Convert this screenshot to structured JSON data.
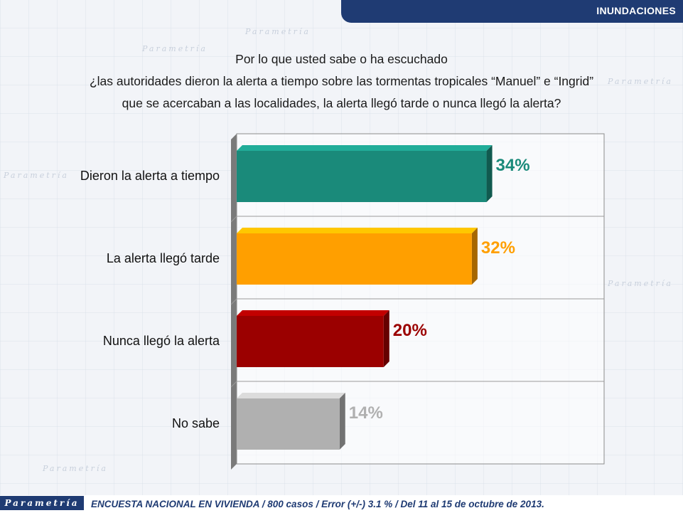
{
  "header": {
    "title": "INUNDACIONES"
  },
  "question": {
    "line1": "Por lo que usted sabe o ha escuchado",
    "line2": "¿las autoridades dieron la alerta a tiempo sobre las tormentas tropicales “Manuel” e “Ingrid”",
    "line3": "que se acercaban a las localidades, la alerta llegó tarde o nunca llegó la alerta?"
  },
  "chart_data": {
    "type": "bar",
    "orientation": "horizontal",
    "categories": [
      "Dieron la alerta a tiempo",
      "La alerta llegó tarde",
      "Nunca llegó la alerta",
      "No sabe"
    ],
    "values": [
      34,
      32,
      20,
      14
    ],
    "value_labels": [
      "34%",
      "32%",
      "20%",
      "14%"
    ],
    "colors": [
      "#1a8a7a",
      "#ff9f00",
      "#9b0000",
      "#b0b0b0"
    ],
    "xlim": [
      0,
      50
    ],
    "grid": true,
    "style": "3d"
  },
  "footer": {
    "logo": "Parametría",
    "note": "ENCUESTA NACIONAL EN VIVIENDA / 800 casos / Error (+/-) 3.1 % / Del 11 al 15 de octubre de 2013."
  }
}
